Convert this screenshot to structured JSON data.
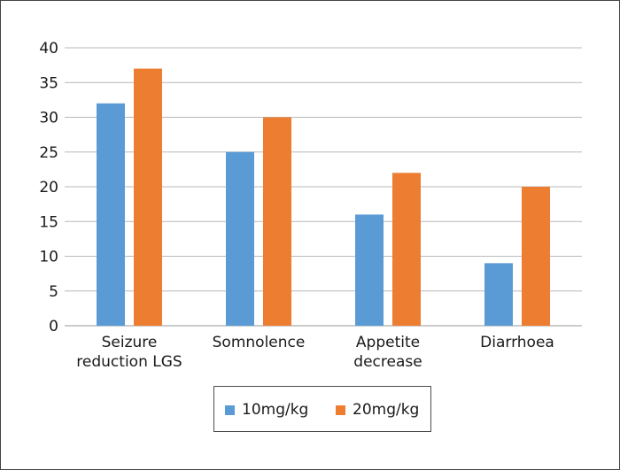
{
  "chart_data": {
    "type": "bar",
    "categories": [
      [
        "Seizure",
        "reduction LGS"
      ],
      [
        "Somnolence"
      ],
      [
        "Appetite",
        "decrease"
      ],
      [
        "Diarrhoea"
      ]
    ],
    "series": [
      {
        "name": "10mg/kg",
        "values": [
          32,
          25,
          16,
          9
        ],
        "color": "#5b9bd5"
      },
      {
        "name": "20mg/kg",
        "values": [
          37,
          30,
          22,
          20
        ],
        "color": "#ed7d31"
      }
    ],
    "ylim": [
      0,
      40
    ],
    "yticks": [
      0,
      5,
      10,
      15,
      20,
      25,
      30,
      35,
      40
    ],
    "grid": true,
    "legend_position": "bottom"
  }
}
